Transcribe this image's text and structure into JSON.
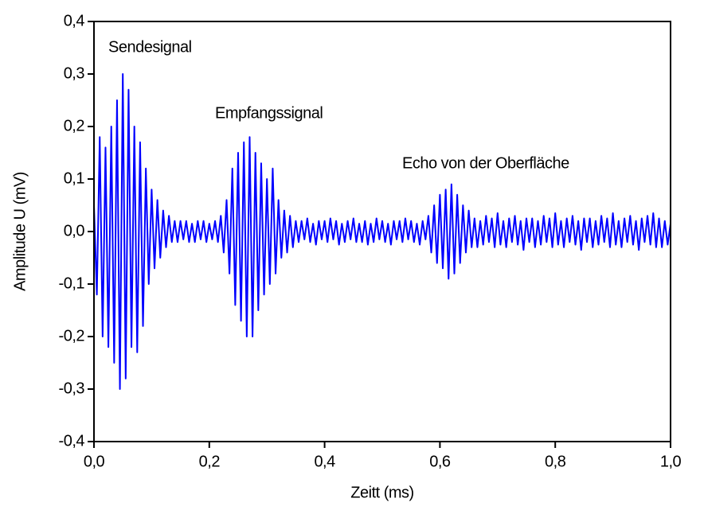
{
  "chart_data": {
    "type": "line",
    "xlabel": "Zeitt (ms)",
    "ylabel": "Amplitude U (mV)",
    "annotations": [
      "Sendesignal",
      "Empfangssignal",
      "Echo von der Oberfläche"
    ],
    "xlim": [
      0,
      1
    ],
    "ylim": [
      -0.4,
      0.4
    ],
    "xticks": [
      {
        "value": 0,
        "label": "0,0"
      },
      {
        "value": 0.2,
        "label": "0,2"
      },
      {
        "value": 0.4,
        "label": "0,4"
      },
      {
        "value": 0.6,
        "label": "0,6"
      },
      {
        "value": 0.8,
        "label": "0,8"
      },
      {
        "value": 1,
        "label": "1,0"
      }
    ],
    "yticks": [
      {
        "value": -0.4,
        "label": "-0,4"
      },
      {
        "value": -0.3,
        "label": "-0,3"
      },
      {
        "value": -0.2,
        "label": "-0,2"
      },
      {
        "value": -0.1,
        "label": "-0,1"
      },
      {
        "value": 0,
        "label": "0,0"
      },
      {
        "value": 0.1,
        "label": "0,1"
      },
      {
        "value": 0.2,
        "label": "0,2"
      },
      {
        "value": 0.3,
        "label": "0,3"
      },
      {
        "value": 0.4,
        "label": "0,4"
      }
    ],
    "color": "#0000ff",
    "x": [
      0,
      0.005,
      0.01,
      0.015,
      0.02,
      0.025,
      0.03,
      0.035,
      0.04,
      0.045,
      0.05,
      0.055,
      0.06,
      0.065,
      0.07,
      0.075,
      0.08,
      0.085,
      0.09,
      0.095,
      0.1,
      0.105,
      0.11,
      0.115,
      0.12,
      0.125,
      0.13,
      0.135,
      0.14,
      0.145,
      0.15,
      0.155,
      0.16,
      0.165,
      0.17,
      0.175,
      0.18,
      0.185,
      0.19,
      0.195,
      0.2,
      0.205,
      0.21,
      0.215,
      0.22,
      0.225,
      0.23,
      0.235,
      0.24,
      0.245,
      0.25,
      0.255,
      0.26,
      0.265,
      0.27,
      0.275,
      0.28,
      0.285,
      0.29,
      0.295,
      0.3,
      0.305,
      0.31,
      0.315,
      0.32,
      0.325,
      0.33,
      0.335,
      0.34,
      0.345,
      0.35,
      0.355,
      0.36,
      0.365,
      0.37,
      0.375,
      0.38,
      0.385,
      0.39,
      0.395,
      0.4,
      0.405,
      0.41,
      0.415,
      0.42,
      0.425,
      0.43,
      0.435,
      0.44,
      0.445,
      0.45,
      0.455,
      0.46,
      0.465,
      0.47,
      0.475,
      0.48,
      0.485,
      0.49,
      0.495,
      0.5,
      0.505,
      0.51,
      0.515,
      0.52,
      0.525,
      0.53,
      0.535,
      0.54,
      0.545,
      0.55,
      0.555,
      0.56,
      0.565,
      0.57,
      0.575,
      0.58,
      0.585,
      0.59,
      0.595,
      0.6,
      0.605,
      0.61,
      0.615,
      0.62,
      0.625,
      0.63,
      0.635,
      0.64,
      0.645,
      0.65,
      0.655,
      0.66,
      0.665,
      0.67,
      0.675,
      0.68,
      0.685,
      0.69,
      0.695,
      0.7,
      0.705,
      0.71,
      0.715,
      0.72,
      0.725,
      0.73,
      0.735,
      0.74,
      0.745,
      0.75,
      0.755,
      0.76,
      0.765,
      0.77,
      0.775,
      0.78,
      0.785,
      0.79,
      0.795,
      0.8,
      0.805,
      0.81,
      0.815,
      0.82,
      0.825,
      0.83,
      0.835,
      0.84,
      0.845,
      0.85,
      0.855,
      0.86,
      0.865,
      0.87,
      0.875,
      0.88,
      0.885,
      0.89,
      0.895,
      0.9,
      0.905,
      0.91,
      0.915,
      0.92,
      0.925,
      0.93,
      0.935,
      0.94,
      0.945,
      0.95,
      0.955,
      0.96,
      0.965,
      0.97,
      0.975,
      0.98,
      0.985,
      0.99,
      0.995,
      1
    ],
    "values": [
      0.05,
      -0.12,
      0.18,
      -0.2,
      0.16,
      -0.22,
      0.2,
      -0.25,
      0.25,
      -0.3,
      0.3,
      -0.28,
      0.27,
      -0.22,
      0.2,
      -0.23,
      0.17,
      -0.18,
      0.12,
      -0.1,
      0.08,
      -0.07,
      0.06,
      -0.05,
      0.04,
      -0.03,
      0.03,
      -0.02,
      0.02,
      -0.02,
      0.02,
      -0.015,
      0.02,
      -0.02,
      0.015,
      -0.02,
      0.02,
      -0.015,
      0.02,
      -0.02,
      0.015,
      -0.015,
      0.02,
      -0.02,
      0.03,
      -0.04,
      0.06,
      -0.08,
      0.12,
      -0.14,
      0.15,
      -0.17,
      0.17,
      -0.2,
      0.18,
      -0.2,
      0.15,
      -0.15,
      0.13,
      -0.12,
      0.1,
      -0.1,
      0.12,
      -0.08,
      0.06,
      -0.05,
      0.04,
      -0.04,
      0.03,
      -0.03,
      0.02,
      -0.02,
      0.02,
      -0.015,
      0.025,
      -0.02,
      0.015,
      -0.025,
      0.02,
      -0.015,
      0.02,
      -0.02,
      0.025,
      -0.015,
      0.02,
      -0.025,
      0.015,
      -0.02,
      0.02,
      -0.015,
      0.025,
      -0.02,
      0.015,
      -0.02,
      0.02,
      -0.025,
      0.015,
      -0.02,
      0.025,
      -0.015,
      0.02,
      -0.02,
      0.015,
      -0.025,
      0.02,
      -0.015,
      0.02,
      -0.02,
      0.025,
      -0.015,
      0.02,
      -0.02,
      0.015,
      -0.025,
      0.02,
      -0.015,
      0.03,
      -0.04,
      0.05,
      -0.06,
      0.07,
      -0.07,
      0.08,
      -0.09,
      0.09,
      -0.08,
      0.07,
      -0.06,
      0.05,
      -0.04,
      0.04,
      -0.03,
      0.025,
      -0.03,
      0.02,
      -0.025,
      0.03,
      -0.02,
      0.025,
      -0.03,
      0.035,
      -0.025,
      0.02,
      -0.03,
      0.025,
      -0.02,
      0.03,
      -0.025,
      0.02,
      -0.035,
      0.025,
      -0.02,
      0.025,
      -0.03,
      0.02,
      -0.025,
      0.03,
      -0.02,
      0.025,
      -0.03,
      0.035,
      -0.025,
      0.02,
      -0.03,
      0.025,
      -0.02,
      0.03,
      -0.025,
      0.02,
      -0.035,
      0.025,
      -0.02,
      0.025,
      -0.03,
      0.02,
      -0.025,
      0.03,
      -0.02,
      0.025,
      -0.03,
      0.035,
      -0.025,
      0.02,
      -0.03,
      0.025,
      -0.02,
      0.03,
      -0.025,
      0.02,
      -0.035,
      0.025,
      -0.02,
      0.03,
      -0.025,
      0.035,
      -0.03,
      0.025,
      -0.03,
      0.02,
      -0.025,
      0.015
    ]
  }
}
